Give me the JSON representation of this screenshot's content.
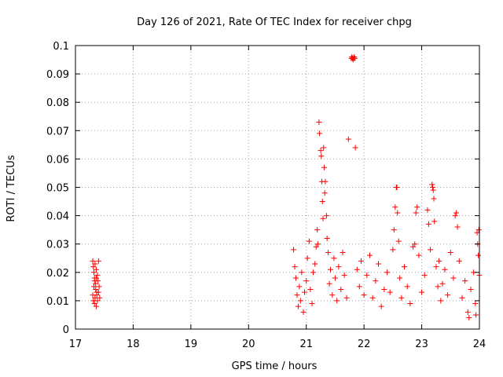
{
  "chart_data": {
    "type": "scatter",
    "title": "Day 126 of 2021, Rate Of TEC Index for receiver chpg",
    "xlabel": "GPS time / hours",
    "ylabel": "ROTI / TECUs",
    "xlim": [
      17,
      24
    ],
    "ylim": [
      0,
      0.1
    ],
    "x_ticks": [
      17,
      18,
      19,
      20,
      21,
      22,
      23,
      24
    ],
    "x_tick_labels": [
      "17",
      "18",
      "19",
      "20",
      "21",
      "22",
      "23",
      "24"
    ],
    "y_ticks": [
      0,
      0.01,
      0.02,
      0.03,
      0.04,
      0.05,
      0.06,
      0.07,
      0.08,
      0.09,
      0.1
    ],
    "y_tick_labels": [
      "0",
      "0.01",
      "0.02",
      "0.03",
      "0.04",
      "0.05",
      "0.06",
      "0.07",
      "0.08",
      "0.09",
      "0.1"
    ],
    "grid": true,
    "marker": "+",
    "marker_color": "#ff0000",
    "series": [
      {
        "name": "ROTI",
        "points": [
          [
            17.3,
            0.024
          ],
          [
            17.31,
            0.022
          ],
          [
            17.32,
            0.02
          ],
          [
            17.33,
            0.018
          ],
          [
            17.34,
            0.023
          ],
          [
            17.35,
            0.016
          ],
          [
            17.36,
            0.021
          ],
          [
            17.37,
            0.013
          ],
          [
            17.38,
            0.019
          ],
          [
            17.4,
            0.024
          ],
          [
            17.3,
            0.012
          ],
          [
            17.31,
            0.01
          ],
          [
            17.32,
            0.015
          ],
          [
            17.33,
            0.009
          ],
          [
            17.34,
            0.011
          ],
          [
            17.35,
            0.014
          ],
          [
            17.36,
            0.008
          ],
          [
            17.37,
            0.012
          ],
          [
            17.38,
            0.01
          ],
          [
            17.39,
            0.017
          ],
          [
            17.4,
            0.013
          ],
          [
            17.41,
            0.015
          ],
          [
            17.42,
            0.011
          ],
          [
            17.33,
            0.017
          ],
          [
            17.36,
            0.018
          ],
          [
            20.78,
            0.028
          ],
          [
            20.8,
            0.022
          ],
          [
            20.82,
            0.018
          ],
          [
            20.84,
            0.012
          ],
          [
            20.86,
            0.008
          ],
          [
            20.88,
            0.015
          ],
          [
            20.9,
            0.01
          ],
          [
            20.92,
            0.02
          ],
          [
            20.95,
            0.006
          ],
          [
            20.97,
            0.013
          ],
          [
            21.0,
            0.017
          ],
          [
            21.02,
            0.025
          ],
          [
            21.05,
            0.031
          ],
          [
            21.07,
            0.014
          ],
          [
            21.1,
            0.009
          ],
          [
            21.12,
            0.02
          ],
          [
            21.15,
            0.023
          ],
          [
            21.17,
            0.029
          ],
          [
            21.19,
            0.035
          ],
          [
            21.2,
            0.03
          ],
          [
            21.22,
            0.073
          ],
          [
            21.23,
            0.069
          ],
          [
            21.25,
            0.063
          ],
          [
            21.26,
            0.061
          ],
          [
            21.27,
            0.052
          ],
          [
            21.28,
            0.045
          ],
          [
            21.29,
            0.039
          ],
          [
            21.3,
            0.064
          ],
          [
            21.31,
            0.057
          ],
          [
            21.32,
            0.048
          ],
          [
            21.33,
            0.052
          ],
          [
            21.35,
            0.04
          ],
          [
            21.36,
            0.032
          ],
          [
            21.38,
            0.027
          ],
          [
            21.4,
            0.016
          ],
          [
            21.42,
            0.021
          ],
          [
            21.45,
            0.012
          ],
          [
            21.48,
            0.025
          ],
          [
            21.5,
            0.018
          ],
          [
            21.53,
            0.01
          ],
          [
            21.56,
            0.022
          ],
          [
            21.6,
            0.014
          ],
          [
            21.63,
            0.027
          ],
          [
            21.66,
            0.019
          ],
          [
            21.7,
            0.011
          ],
          [
            21.73,
            0.067
          ],
          [
            21.78,
            0.0955
          ],
          [
            21.8,
            0.0955
          ],
          [
            21.82,
            0.0955
          ],
          [
            21.84,
            0.0955
          ],
          [
            21.79,
            0.096
          ],
          [
            21.81,
            0.095
          ],
          [
            21.83,
            0.096
          ],
          [
            21.85,
            0.064
          ],
          [
            21.88,
            0.021
          ],
          [
            21.92,
            0.015
          ],
          [
            21.95,
            0.024
          ],
          [
            22.0,
            0.012
          ],
          [
            22.05,
            0.019
          ],
          [
            22.1,
            0.026
          ],
          [
            22.15,
            0.011
          ],
          [
            22.2,
            0.017
          ],
          [
            22.25,
            0.023
          ],
          [
            22.3,
            0.008
          ],
          [
            22.35,
            0.014
          ],
          [
            22.4,
            0.02
          ],
          [
            22.45,
            0.013
          ],
          [
            22.5,
            0.028
          ],
          [
            22.52,
            0.035
          ],
          [
            22.54,
            0.043
          ],
          [
            22.56,
            0.05
          ],
          [
            22.57,
            0.05
          ],
          [
            22.58,
            0.041
          ],
          [
            22.6,
            0.031
          ],
          [
            22.62,
            0.018
          ],
          [
            22.65,
            0.011
          ],
          [
            22.7,
            0.022
          ],
          [
            22.75,
            0.015
          ],
          [
            22.8,
            0.009
          ],
          [
            22.85,
            0.029
          ],
          [
            22.88,
            0.03
          ],
          [
            22.9,
            0.041
          ],
          [
            22.92,
            0.043
          ],
          [
            22.95,
            0.026
          ],
          [
            23.0,
            0.013
          ],
          [
            23.05,
            0.019
          ],
          [
            23.1,
            0.042
          ],
          [
            23.12,
            0.037
          ],
          [
            23.15,
            0.028
          ],
          [
            23.18,
            0.051
          ],
          [
            23.19,
            0.05
          ],
          [
            23.2,
            0.049
          ],
          [
            23.21,
            0.046
          ],
          [
            23.22,
            0.038
          ],
          [
            23.25,
            0.022
          ],
          [
            23.28,
            0.015
          ],
          [
            23.3,
            0.024
          ],
          [
            23.33,
            0.01
          ],
          [
            23.36,
            0.016
          ],
          [
            23.4,
            0.021
          ],
          [
            23.45,
            0.012
          ],
          [
            23.5,
            0.027
          ],
          [
            23.55,
            0.018
          ],
          [
            23.58,
            0.04
          ],
          [
            23.6,
            0.041
          ],
          [
            23.62,
            0.036
          ],
          [
            23.65,
            0.024
          ],
          [
            23.7,
            0.011
          ],
          [
            23.75,
            0.017
          ],
          [
            23.8,
            0.006
          ],
          [
            23.85,
            0.014
          ],
          [
            23.9,
            0.02
          ],
          [
            23.93,
            0.009
          ],
          [
            23.96,
            0.034
          ],
          [
            23.97,
            0.03
          ],
          [
            23.98,
            0.026
          ],
          [
            23.99,
            0.035
          ],
          [
            24.0,
            0.019
          ],
          [
            23.94,
            0.005
          ],
          [
            23.82,
            0.004
          ]
        ]
      }
    ]
  }
}
